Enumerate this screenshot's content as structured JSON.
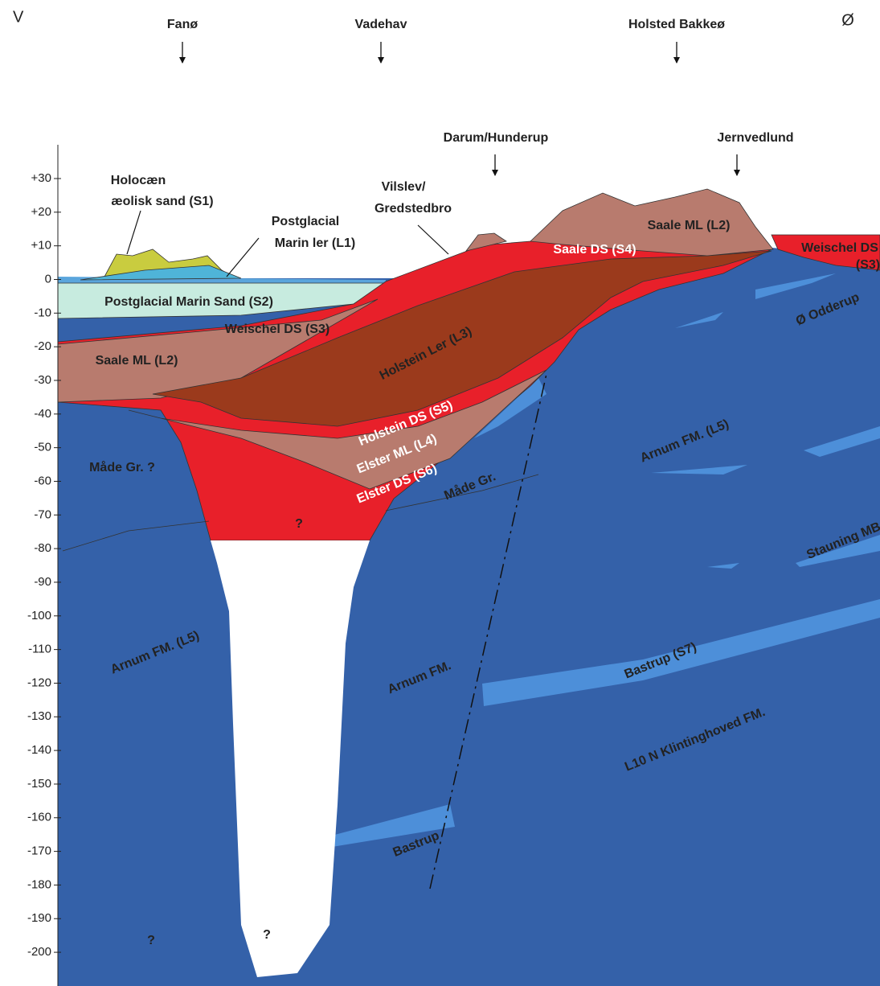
{
  "header": {
    "west": "V",
    "east": "Ø"
  },
  "top_locations": [
    "Fanø",
    "Vadehav",
    "Holsted Bakkeø"
  ],
  "section_locations": [
    "Darum/Hunderup",
    "Jernvedlund"
  ],
  "depth_axis": {
    "ticks": [
      "+30",
      "+20",
      "+10",
      "0",
      "-10",
      "-20",
      "-30",
      "-40",
      "-50",
      "-60",
      "-70",
      "-80",
      "-90",
      "-100",
      "-110",
      "-120",
      "-130",
      "-140",
      "-150",
      "-160",
      "-170",
      "-180",
      "-190",
      "-200"
    ]
  },
  "unit_labels": [
    "Holocæn",
    "æolisk sand (S1)",
    "Postglacial",
    "Marin ler (L1)",
    "Vilslev/",
    "Gredstedbro",
    "Postglacial Marin Sand (S2)",
    "Weischel DS (S3)",
    "Saale ML (L2)",
    "Holstein Ler (L3)",
    "Holstein DS (S5)",
    "Elster ML (L4)",
    "Elster DS (S6)",
    "Måde Gr.",
    "Måde Gr. ?",
    "?",
    "Saale DS (S4)",
    "Saale ML (L2)",
    "Weischel DS",
    "(S3)",
    "Ø Odderup",
    "Arnum FM. (L5)",
    "Stauning MB",
    "Arnum FM. (L5)",
    "Arnum FM.",
    "Bastrup (S7)",
    "L10 N Klintinghoved FM.",
    "Bastrup",
    "?",
    "?"
  ]
}
